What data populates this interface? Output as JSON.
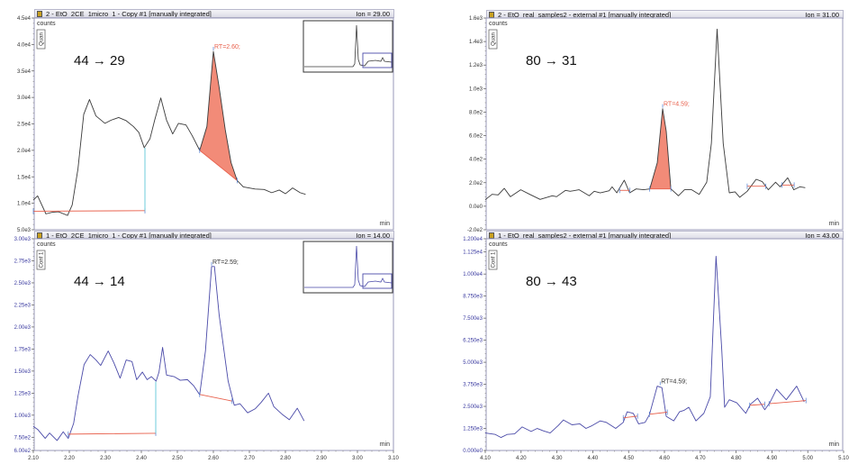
{
  "chart_data": [
    {
      "type": "line",
      "title": "2 - EtO_2CE_1micro_1 - Copy #1 [manually integrated]",
      "ion": "Ion = 29.00",
      "transition": "44 → 29",
      "ylabel": "counts",
      "xlabel": "min",
      "badge": "Quan",
      "color": "#3a3a3a",
      "tick_color": "#333333",
      "xlim": [
        2.1,
        3.1
      ],
      "ylim": [
        5000,
        45000
      ],
      "yticks": [
        "5.0e3",
        "1.0e4",
        "1.5e4",
        "2.0e4",
        "2.5e4",
        "3.0e4",
        "3.5e4",
        "4.0e4",
        "4.5e4"
      ],
      "xticks": [],
      "points": [
        [
          2.1,
          10600
        ],
        [
          2.112,
          11400
        ],
        [
          2.135,
          8000
        ],
        [
          2.153,
          8300
        ],
        [
          2.17,
          8400
        ],
        [
          2.195,
          7700
        ],
        [
          2.208,
          9700
        ],
        [
          2.224,
          16500
        ],
        [
          2.24,
          26800
        ],
        [
          2.256,
          29600
        ],
        [
          2.274,
          26500
        ],
        [
          2.299,
          25100
        ],
        [
          2.316,
          25700
        ],
        [
          2.337,
          26200
        ],
        [
          2.358,
          25600
        ],
        [
          2.378,
          24500
        ],
        [
          2.393,
          23400
        ],
        [
          2.408,
          20500
        ],
        [
          2.424,
          22200
        ],
        [
          2.437,
          25700
        ],
        [
          2.454,
          29900
        ],
        [
          2.47,
          25700
        ],
        [
          2.487,
          23100
        ],
        [
          2.503,
          25100
        ],
        [
          2.524,
          24800
        ],
        [
          2.541,
          22800
        ],
        [
          2.562,
          20000
        ],
        [
          2.582,
          24500
        ],
        [
          2.6,
          38700
        ],
        [
          2.616,
          31900
        ],
        [
          2.633,
          23900
        ],
        [
          2.649,
          17700
        ],
        [
          2.666,
          14300
        ],
        [
          2.683,
          13100
        ],
        [
          2.716,
          12700
        ],
        [
          2.741,
          12600
        ],
        [
          2.762,
          12000
        ],
        [
          2.783,
          12500
        ],
        [
          2.8,
          11800
        ],
        [
          2.82,
          12900
        ],
        [
          2.841,
          12000
        ],
        [
          2.856,
          11700
        ]
      ],
      "baselines": [
        {
          "x": [
            2.1,
            2.41
          ],
          "y": [
            8500,
            8600
          ],
          "filled": false
        },
        {
          "x": [
            2.562,
            2.666
          ],
          "y": [
            20000,
            14300
          ],
          "filled": true
        }
      ],
      "split_marker": {
        "x": 2.41,
        "y": [
          8600,
          20500
        ]
      },
      "annotation": {
        "text": "RT=2.60;",
        "x": 2.6,
        "y": 38700,
        "color": "#e8604c"
      },
      "fill_color": "#f28b78",
      "baseline_color": "#e8604c"
    },
    {
      "type": "line",
      "title": "1 - EtO_2CE_1micro_1 - Copy #1 [manually integrated]",
      "ion": "Ion = 14.00",
      "transition": "44 → 14",
      "ylabel": "counts",
      "xlabel": "min",
      "badge": "Conf 1",
      "color": "#4a4aa8",
      "tick_color": "#3a3aa0",
      "xlim": [
        2.1,
        3.1
      ],
      "ylim": [
        600,
        3000
      ],
      "yticks": [
        "6.00e2",
        "7.50e2",
        "1.00e3",
        "1.25e3",
        "1.50e3",
        "1.75e3",
        "2.00e3",
        "2.25e3",
        "2.50e3",
        "2.75e3",
        "3.00e3"
      ],
      "xticks": [
        "2.10",
        "2.20",
        "2.30",
        "2.40",
        "2.50",
        "2.60",
        "2.70",
        "2.80",
        "2.90",
        "3.00",
        "3.10"
      ],
      "points": [
        [
          2.1,
          873
        ],
        [
          2.112,
          839
        ],
        [
          2.133,
          737
        ],
        [
          2.145,
          798
        ],
        [
          2.166,
          713
        ],
        [
          2.183,
          812
        ],
        [
          2.197,
          737
        ],
        [
          2.212,
          908
        ],
        [
          2.224,
          1215
        ],
        [
          2.241,
          1574
        ],
        [
          2.258,
          1687
        ],
        [
          2.274,
          1626
        ],
        [
          2.287,
          1564
        ],
        [
          2.308,
          1728
        ],
        [
          2.324,
          1591
        ],
        [
          2.341,
          1420
        ],
        [
          2.358,
          1626
        ],
        [
          2.374,
          1608
        ],
        [
          2.387,
          1403
        ],
        [
          2.403,
          1489
        ],
        [
          2.416,
          1403
        ],
        [
          2.428,
          1437
        ],
        [
          2.441,
          1386
        ],
        [
          2.449,
          1489
        ],
        [
          2.459,
          1769
        ],
        [
          2.47,
          1455
        ],
        [
          2.491,
          1437
        ],
        [
          2.508,
          1396
        ],
        [
          2.528,
          1403
        ],
        [
          2.545,
          1335
        ],
        [
          2.562,
          1232
        ],
        [
          2.578,
          1728
        ],
        [
          2.595,
          2685
        ],
        [
          2.603,
          2685
        ],
        [
          2.616,
          2138
        ],
        [
          2.641,
          1386
        ],
        [
          2.658,
          1113
        ],
        [
          2.674,
          1130
        ],
        [
          2.695,
          1027
        ],
        [
          2.716,
          1072
        ],
        [
          2.733,
          1147
        ],
        [
          2.753,
          1250
        ],
        [
          2.768,
          1096
        ],
        [
          2.791,
          1010
        ],
        [
          2.811,
          949
        ],
        [
          2.833,
          1079
        ],
        [
          2.852,
          935
        ]
      ],
      "baselines": [
        {
          "x": [
            2.197,
            2.44
          ],
          "y": [
            785,
            795
          ],
          "filled": false
        },
        {
          "x": [
            2.562,
            2.652
          ],
          "y": [
            1235,
            1160
          ],
          "filled": false
        }
      ],
      "split_marker": {
        "x": 2.44,
        "y": [
          795,
          1380
        ]
      },
      "annotation": {
        "text": "RT=2.59;",
        "x": 2.595,
        "y": 2685,
        "color": "#333333"
      },
      "fill_color": "#f28b78",
      "baseline_color": "#e8604c"
    },
    {
      "type": "line",
      "title": "2 - EtO_real_samples2 - external #1 [manually integrated]",
      "ion": "Ion = 31.00",
      "transition": "80 → 31",
      "ylabel": "counts",
      "xlabel": "min",
      "badge": "Quan",
      "color": "#3a3a3a",
      "tick_color": "#333333",
      "xlim": [
        4.1,
        5.1
      ],
      "ylim": [
        -200,
        1600
      ],
      "yticks": [
        "-2.0e2",
        "0.0e0",
        "2.0e2",
        "4.0e2",
        "6.0e2",
        "8.0e2",
        "1.0e3",
        "1.2e3",
        "1.4e3",
        "1.6e3"
      ],
      "xticks": [],
      "points": [
        [
          4.1,
          55
        ],
        [
          4.119,
          101
        ],
        [
          4.136,
          96
        ],
        [
          4.153,
          152
        ],
        [
          4.17,
          81
        ],
        [
          4.199,
          140
        ],
        [
          4.224,
          101
        ],
        [
          4.253,
          58
        ],
        [
          4.287,
          89
        ],
        [
          4.299,
          81
        ],
        [
          4.324,
          135
        ],
        [
          4.337,
          127
        ],
        [
          4.362,
          140
        ],
        [
          4.39,
          89
        ],
        [
          4.404,
          127
        ],
        [
          4.421,
          114
        ],
        [
          4.446,
          132
        ],
        [
          4.454,
          165
        ],
        [
          4.467,
          114
        ],
        [
          4.488,
          221
        ],
        [
          4.503,
          114
        ],
        [
          4.521,
          147
        ],
        [
          4.542,
          140
        ],
        [
          4.559,
          147
        ],
        [
          4.58,
          370
        ],
        [
          4.595,
          829
        ],
        [
          4.605,
          638
        ],
        [
          4.618,
          147
        ],
        [
          4.639,
          89
        ],
        [
          4.656,
          140
        ],
        [
          4.676,
          140
        ],
        [
          4.697,
          101
        ],
        [
          4.718,
          204
        ],
        [
          4.731,
          535
        ],
        [
          4.747,
          1506
        ],
        [
          4.764,
          535
        ],
        [
          4.781,
          114
        ],
        [
          4.797,
          122
        ],
        [
          4.81,
          76
        ],
        [
          4.831,
          127
        ],
        [
          4.856,
          229
        ],
        [
          4.873,
          209
        ],
        [
          4.89,
          140
        ],
        [
          4.91,
          204
        ],
        [
          4.923,
          165
        ],
        [
          4.944,
          242
        ],
        [
          4.961,
          140
        ],
        [
          4.978,
          165
        ],
        [
          4.993,
          158
        ]
      ],
      "baselines": [
        {
          "x": [
            4.475,
            4.503
          ],
          "y": [
            135,
            135
          ],
          "filled": false
        },
        {
          "x": [
            4.559,
            4.618
          ],
          "y": [
            147,
            147
          ],
          "filled": true
        },
        {
          "x": [
            4.831,
            4.883
          ],
          "y": [
            170,
            170
          ],
          "filled": false
        },
        {
          "x": [
            4.928,
            4.962
          ],
          "y": [
            180,
            180
          ],
          "filled": false
        }
      ],
      "annotation": {
        "text": "RT=4.59;",
        "x": 4.595,
        "y": 829,
        "color": "#e8604c"
      },
      "fill_color": "#f28b78",
      "baseline_color": "#e8604c"
    },
    {
      "type": "line",
      "title": "1 - EtO_real_samples2 - external #1 [manually integrated]",
      "ion": "Ion = 43.00",
      "transition": "80 → 43",
      "ylabel": "counts",
      "xlabel": "min",
      "badge": "Conf 1",
      "color": "#4a4aa8",
      "tick_color": "#3a3aa0",
      "xlim": [
        4.1,
        5.1
      ],
      "ylim": [
        0,
        12000
      ],
      "yticks": [
        "0.000e0",
        "1.250e3",
        "2.500e3",
        "3.750e3",
        "5.000e3",
        "6.250e3",
        "7.500e3",
        "8.750e3",
        "1.000e4",
        "1.125e4",
        "1.200e4"
      ],
      "xticks": [
        "4.10",
        "4.20",
        "4.30",
        "4.40",
        "4.50",
        "4.60",
        "4.70",
        "4.80",
        "4.90",
        "5.00",
        "5.10"
      ],
      "points": [
        [
          4.1,
          993
        ],
        [
          4.128,
          907
        ],
        [
          4.144,
          736
        ],
        [
          4.161,
          907
        ],
        [
          4.182,
          942
        ],
        [
          4.203,
          1335
        ],
        [
          4.228,
          1079
        ],
        [
          4.245,
          1250
        ],
        [
          4.262,
          1113
        ],
        [
          4.281,
          993
        ],
        [
          4.304,
          1421
        ],
        [
          4.318,
          1729
        ],
        [
          4.342,
          1455
        ],
        [
          4.364,
          1507
        ],
        [
          4.381,
          1250
        ],
        [
          4.396,
          1387
        ],
        [
          4.421,
          1678
        ],
        [
          4.438,
          1592
        ],
        [
          4.464,
          1250
        ],
        [
          4.485,
          1592
        ],
        [
          4.496,
          2191
        ],
        [
          4.513,
          2106
        ],
        [
          4.528,
          1507
        ],
        [
          4.546,
          1592
        ],
        [
          4.558,
          2020
        ],
        [
          4.58,
          3647
        ],
        [
          4.593,
          3561
        ],
        [
          4.605,
          1935
        ],
        [
          4.626,
          1678
        ],
        [
          4.642,
          2191
        ],
        [
          4.655,
          2277
        ],
        [
          4.668,
          2448
        ],
        [
          4.688,
          1678
        ],
        [
          4.71,
          2106
        ],
        [
          4.728,
          3047
        ],
        [
          4.744,
          11008
        ],
        [
          4.76,
          5701
        ],
        [
          4.768,
          2448
        ],
        [
          4.781,
          2876
        ],
        [
          4.802,
          2705
        ],
        [
          4.827,
          2106
        ],
        [
          4.84,
          2619
        ],
        [
          4.86,
          2962
        ],
        [
          4.88,
          2311
        ],
        [
          4.894,
          2705
        ],
        [
          4.913,
          3475
        ],
        [
          4.94,
          2876
        ],
        [
          4.969,
          3647
        ],
        [
          4.99,
          2756
        ]
      ],
      "baselines": [
        {
          "x": [
            4.485,
            4.525
          ],
          "y": [
            1850,
            1950
          ],
          "filled": false
        },
        {
          "x": [
            4.558,
            4.608
          ],
          "y": [
            2050,
            2170
          ],
          "filled": false
        },
        {
          "x": [
            4.838,
            4.88
          ],
          "y": [
            2560,
            2620
          ],
          "filled": false
        },
        {
          "x": [
            4.892,
            4.995
          ],
          "y": [
            2650,
            2830
          ],
          "filled": false
        }
      ],
      "annotation": {
        "text": "RT=4.59;",
        "x": 4.588,
        "y": 3647,
        "color": "#333333"
      },
      "fill_color": "#f28b78",
      "baseline_color": "#e8604c"
    }
  ]
}
